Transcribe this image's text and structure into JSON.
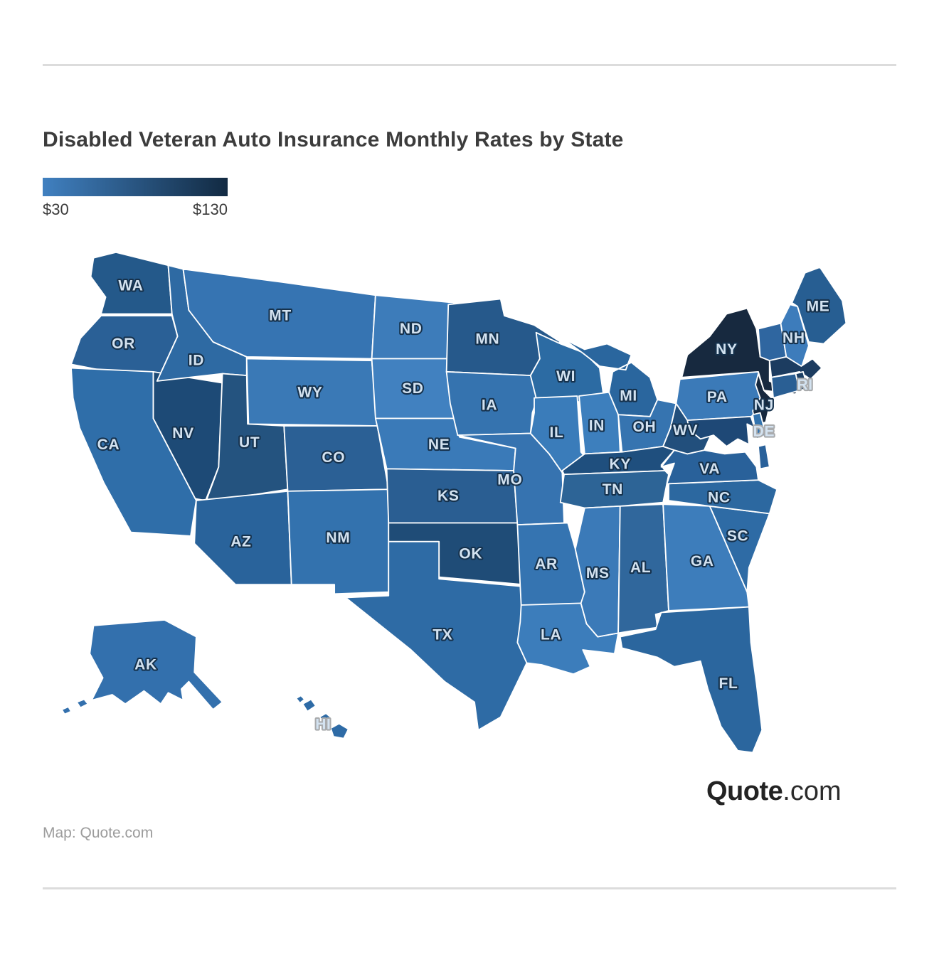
{
  "page": {
    "title": "Disabled Veteran Auto Insurance Monthly Rates by State",
    "attribution": "Map: Quote.com",
    "logo": {
      "bold": "Quote",
      "rest": ".com"
    }
  },
  "legend": {
    "min_label": "$30",
    "max_label": "$130",
    "gradient_start": "#4080c0",
    "gradient_end": "#122a42"
  },
  "map": {
    "border_color": "#ffffff",
    "label_fill": "#d3e2f0",
    "label_halo": "#16324d",
    "gray_halo": "#a9abad",
    "gray_halo_states": [
      "RI",
      "DE",
      "HI"
    ],
    "states": [
      {
        "id": "WA",
        "label": "WA",
        "color": "#24598a"
      },
      {
        "id": "OR",
        "label": "OR",
        "color": "#2a6096"
      },
      {
        "id": "CA",
        "label": "CA",
        "color": "#2f6ea9"
      },
      {
        "id": "NV",
        "label": "NV",
        "color": "#1d4a76"
      },
      {
        "id": "ID",
        "label": "ID",
        "color": "#2e6aa3"
      },
      {
        "id": "MT",
        "label": "MT",
        "color": "#3674b2"
      },
      {
        "id": "WY",
        "label": "WY",
        "color": "#3a79b6"
      },
      {
        "id": "UT",
        "label": "UT",
        "color": "#24537f"
      },
      {
        "id": "CO",
        "label": "CO",
        "color": "#2b6095"
      },
      {
        "id": "AZ",
        "label": "AZ",
        "color": "#29639b"
      },
      {
        "id": "NM",
        "label": "NM",
        "color": "#3372ae"
      },
      {
        "id": "ND",
        "label": "ND",
        "color": "#3d7cba"
      },
      {
        "id": "SD",
        "label": "SD",
        "color": "#4181c0"
      },
      {
        "id": "NE",
        "label": "NE",
        "color": "#3a7ab8"
      },
      {
        "id": "KS",
        "label": "KS",
        "color": "#2a5e92"
      },
      {
        "id": "OK",
        "label": "OK",
        "color": "#1f4c77"
      },
      {
        "id": "TX",
        "label": "TX",
        "color": "#2e6ba5"
      },
      {
        "id": "MN",
        "label": "MN",
        "color": "#26598b"
      },
      {
        "id": "IA",
        "label": "IA",
        "color": "#3573af"
      },
      {
        "id": "MO",
        "label": "MO",
        "color": "#3673b0"
      },
      {
        "id": "AR",
        "label": "AR",
        "color": "#3574b1"
      },
      {
        "id": "LA",
        "label": "LA",
        "color": "#3c7dbb"
      },
      {
        "id": "WI",
        "label": "WI",
        "color": "#2c6ba3"
      },
      {
        "id": "IL",
        "label": "IL",
        "color": "#3a7cba"
      },
      {
        "id": "IN",
        "label": "IN",
        "color": "#3d7fbd"
      },
      {
        "id": "MI",
        "label": "MI",
        "color": "#2a669e"
      },
      {
        "id": "OH",
        "label": "OH",
        "color": "#3674b0"
      },
      {
        "id": "KY",
        "label": "KY",
        "color": "#1f4f7e"
      },
      {
        "id": "TN",
        "label": "TN",
        "color": "#2d6496"
      },
      {
        "id": "MS",
        "label": "MS",
        "color": "#3b7ab8"
      },
      {
        "id": "AL",
        "label": "AL",
        "color": "#30679c"
      },
      {
        "id": "GA",
        "label": "GA",
        "color": "#3d7dbb"
      },
      {
        "id": "FL",
        "label": "FL",
        "color": "#2b669e"
      },
      {
        "id": "SC",
        "label": "SC",
        "color": "#2e6ba5"
      },
      {
        "id": "NC",
        "label": "NC",
        "color": "#2c68a0"
      },
      {
        "id": "VA",
        "label": "VA",
        "color": "#29619a"
      },
      {
        "id": "WV",
        "label": "WV",
        "color": "#224f7c"
      },
      {
        "id": "PA",
        "label": "PA",
        "color": "#3b7ab8"
      },
      {
        "id": "NY",
        "label": "NY",
        "color": "#17293f"
      },
      {
        "id": "NJ",
        "label": "NJ",
        "color": "#16283e"
      },
      {
        "id": "MD",
        "label": "",
        "color": "#1e4876"
      },
      {
        "id": "DE",
        "label": "DE",
        "color": "#3273ae"
      },
      {
        "id": "VT",
        "label": "",
        "color": "#2f66a0"
      },
      {
        "id": "NH",
        "label": "NH",
        "color": "#3d7cbb"
      },
      {
        "id": "MA",
        "label": "",
        "color": "#1c3c60"
      },
      {
        "id": "CT",
        "label": "",
        "color": "#2a5f94"
      },
      {
        "id": "RI",
        "label": "RI",
        "color": "#1d3f63"
      },
      {
        "id": "ME",
        "label": "ME",
        "color": "#275e92"
      },
      {
        "id": "AK",
        "label": "AK",
        "color": "#3370ad"
      },
      {
        "id": "HI",
        "label": "HI",
        "color": "#2e6ba6"
      }
    ]
  }
}
